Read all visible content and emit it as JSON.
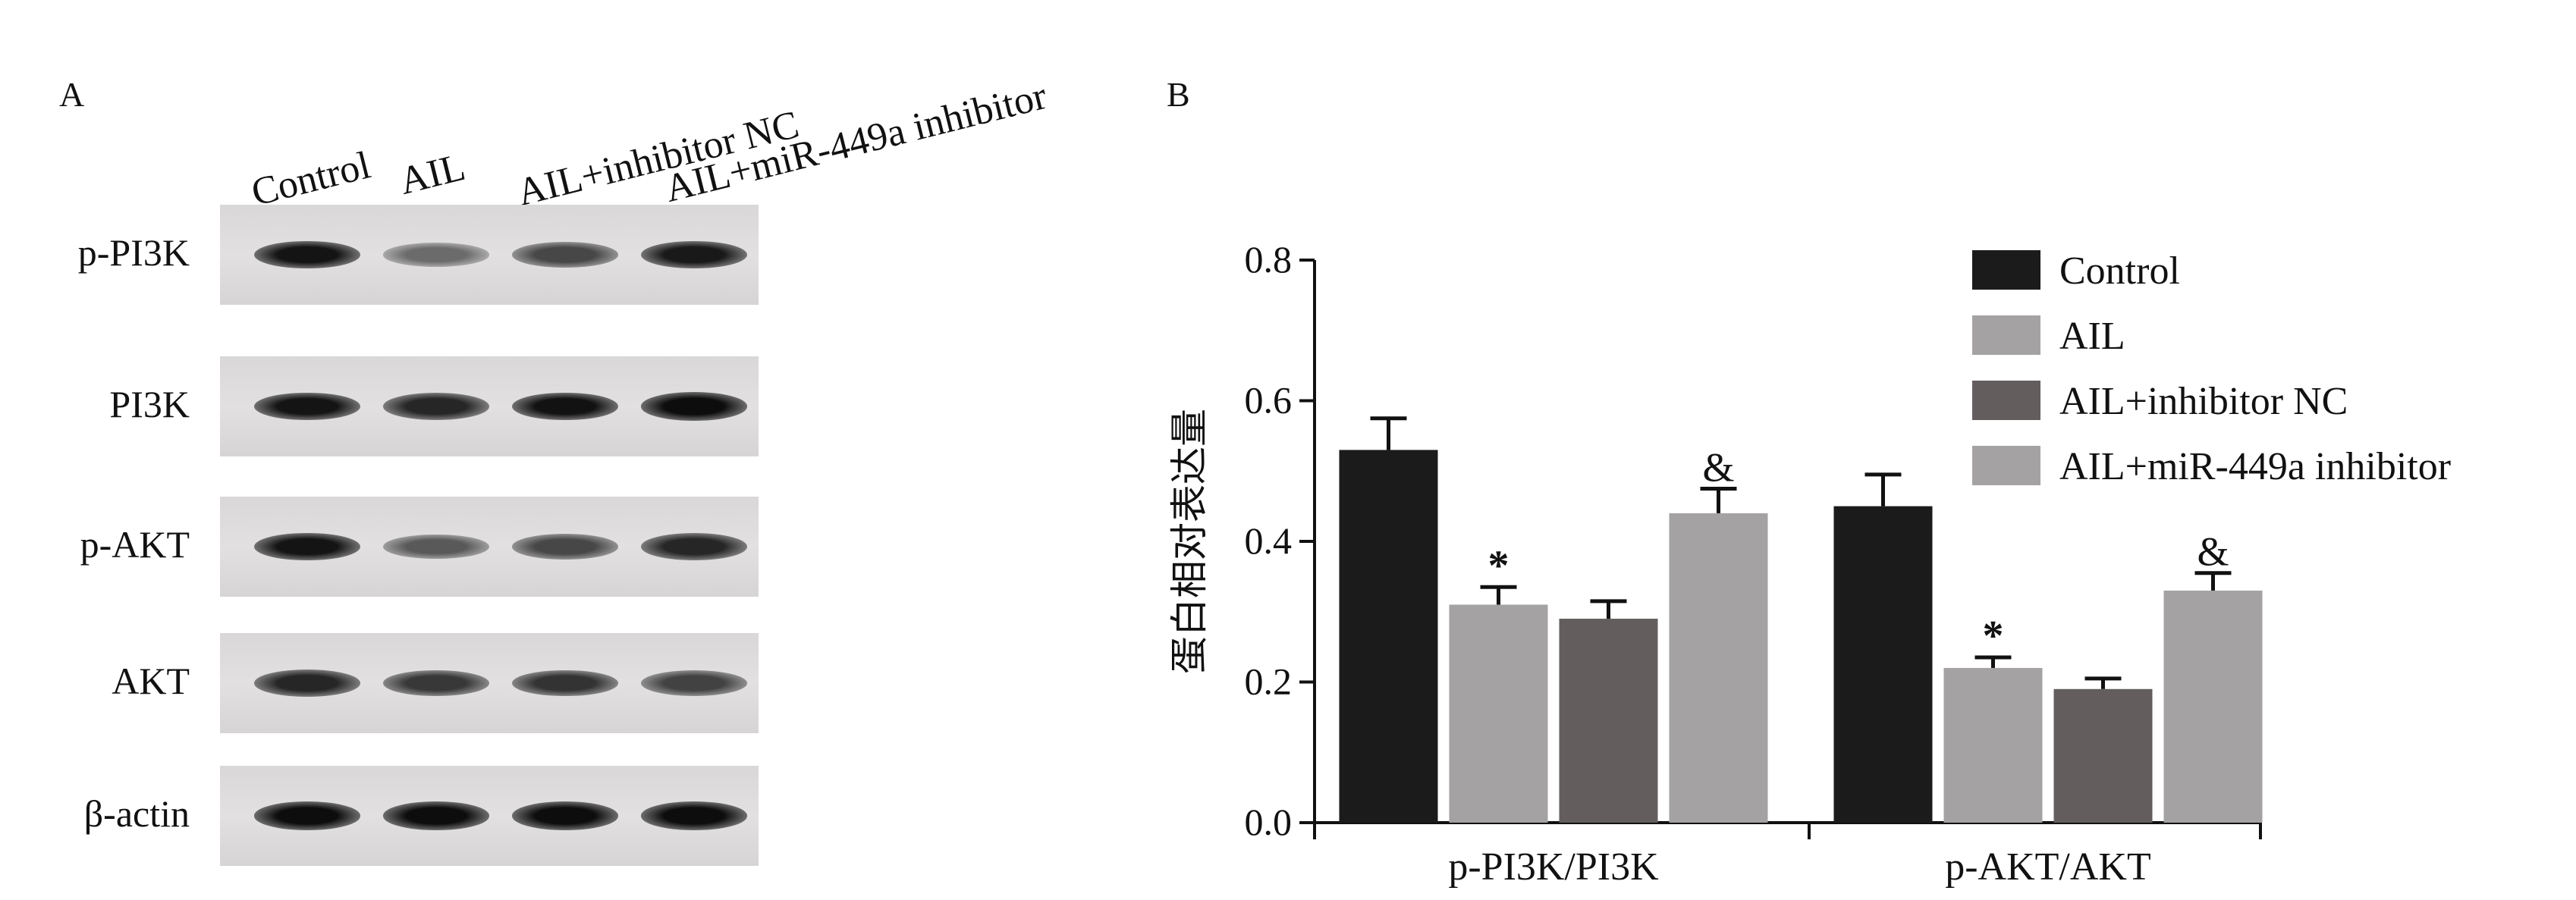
{
  "panel_a": {
    "letter": "A",
    "lanes": [
      "Control",
      "AIL",
      "AIL+inhibitor NC",
      "AIL+miR-449a inhibitor"
    ],
    "blots": [
      {
        "label": "p-PI3K",
        "intensity": [
          0.92,
          0.58,
          0.72,
          0.9
        ]
      },
      {
        "label": "PI3K",
        "intensity": [
          0.92,
          0.85,
          0.93,
          0.95
        ]
      },
      {
        "label": "p-AKT",
        "intensity": [
          0.92,
          0.65,
          0.72,
          0.85
        ]
      },
      {
        "label": "AKT",
        "intensity": [
          0.85,
          0.78,
          0.8,
          0.74
        ]
      },
      {
        "label": "β-actin",
        "intensity": [
          0.95,
          0.95,
          0.95,
          0.95
        ]
      }
    ]
  },
  "panel_b": {
    "letter": "B"
  },
  "chart_data": {
    "type": "bar",
    "categories": [
      "p-PI3K/PI3K",
      "p-AKT/AKT"
    ],
    "ylabel": "蛋白相对表达量",
    "ylim": [
      0,
      0.8
    ],
    "yticks": [
      "0.0",
      "0.2",
      "0.4",
      "0.6",
      "0.8"
    ],
    "ytick_values": [
      0,
      0.2,
      0.4,
      0.6,
      0.8
    ],
    "legend_position": "top-right",
    "series": [
      {
        "name": "Control",
        "color": "#1b1b1b",
        "values": [
          0.53,
          0.45
        ],
        "errors": [
          0.045,
          0.045
        ],
        "annotations": [
          "",
          ""
        ]
      },
      {
        "name": "AIL",
        "color": "#a5a2a3",
        "values": [
          0.31,
          0.22
        ],
        "errors": [
          0.025,
          0.015
        ],
        "annotations": [
          "*",
          "*"
        ]
      },
      {
        "name": "AIL+inhibitor NC",
        "color": "#635d5e",
        "values": [
          0.29,
          0.19
        ],
        "errors": [
          0.025,
          0.015
        ],
        "annotations": [
          "",
          ""
        ]
      },
      {
        "name": "AIL+miR-449a inhibitor",
        "color": "#a5a2a3",
        "values": [
          0.44,
          0.33
        ],
        "errors": [
          0.035,
          0.025
        ],
        "annotations": [
          "&",
          "&"
        ]
      }
    ]
  }
}
